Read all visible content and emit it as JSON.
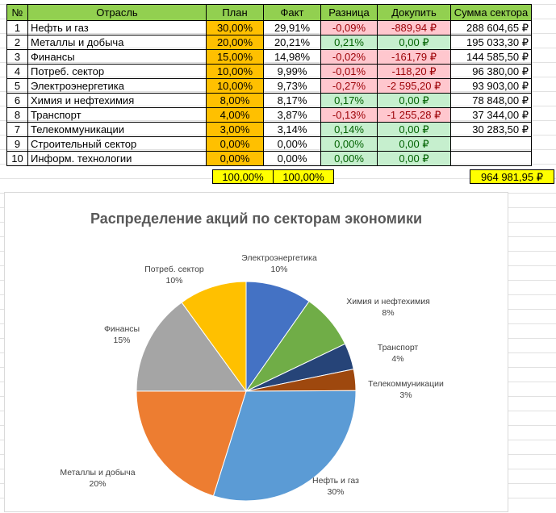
{
  "table": {
    "headers": [
      "№",
      "Отрасль",
      "План",
      "Факт",
      "Разница",
      "Докупить",
      "Сумма сектора"
    ],
    "rows": [
      {
        "n": "1",
        "name": "Нефть и газ",
        "plan": "30,00%",
        "fact": "29,91%",
        "diff": "-0,09%",
        "buy": "-889,94 ₽",
        "sum": "288 604,65 ₽",
        "neg": true
      },
      {
        "n": "2",
        "name": "Металлы и добыча",
        "plan": "20,00%",
        "fact": "20,21%",
        "diff": "0,21%",
        "buy": "0,00 ₽",
        "sum": "195 033,30 ₽",
        "neg": false
      },
      {
        "n": "3",
        "name": "Финансы",
        "plan": "15,00%",
        "fact": "14,98%",
        "diff": "-0,02%",
        "buy": "-161,79 ₽",
        "sum": "144 585,50 ₽",
        "neg": true
      },
      {
        "n": "4",
        "name": "Потреб. сектор",
        "plan": "10,00%",
        "fact": "9,99%",
        "diff": "-0,01%",
        "buy": "-118,20 ₽",
        "sum": "96 380,00 ₽",
        "neg": true
      },
      {
        "n": "5",
        "name": "Электроэнергетика",
        "plan": "10,00%",
        "fact": "9,73%",
        "diff": "-0,27%",
        "buy": "-2 595,20 ₽",
        "sum": "93 903,00 ₽",
        "neg": true
      },
      {
        "n": "6",
        "name": "Химия и нефтехимия",
        "plan": "8,00%",
        "fact": "8,17%",
        "diff": "0,17%",
        "buy": "0,00 ₽",
        "sum": "78 848,00 ₽",
        "neg": false
      },
      {
        "n": "8",
        "name": "Транспорт",
        "plan": "4,00%",
        "fact": "3,87%",
        "diff": "-0,13%",
        "buy": "-1 255,28 ₽",
        "sum": "37 344,00 ₽",
        "neg": true
      },
      {
        "n": "7",
        "name": "Телекоммуникации",
        "plan": "3,00%",
        "fact": "3,14%",
        "diff": "0,14%",
        "buy": "0,00 ₽",
        "sum": "30 283,50 ₽",
        "neg": false
      },
      {
        "n": "9",
        "name": "Строительный сектор",
        "plan": "0,00%",
        "fact": "0,00%",
        "diff": "0,00%",
        "buy": "0,00 ₽",
        "sum": "",
        "neg": false
      },
      {
        "n": "10",
        "name": "Информ. технологии",
        "plan": "0,00%",
        "fact": "0,00%",
        "diff": "0,00%",
        "buy": "0,00 ₽",
        "sum": "",
        "neg": false
      }
    ],
    "total_plan": "100,00%",
    "total_fact": "100,00%",
    "total_sum": "964 981,95 ₽"
  },
  "chart_data": {
    "type": "pie",
    "title": "Распределение акций по секторам экономики",
    "slices": [
      {
        "label": "Электроэнергетика",
        "value": 9.73,
        "pct": "10%",
        "color": "#4472c4"
      },
      {
        "label": "Химия и нефтехимия",
        "value": 8.17,
        "pct": "8%",
        "color": "#70ad47"
      },
      {
        "label": "Транспорт",
        "value": 3.87,
        "pct": "4%",
        "color": "#264478"
      },
      {
        "label": "Телекоммуникации",
        "value": 3.14,
        "pct": "3%",
        "color": "#9e480e"
      },
      {
        "label": "Нефть и газ",
        "value": 29.91,
        "pct": "30%",
        "color": "#5b9bd5"
      },
      {
        "label": "Металлы и добыча",
        "value": 20.21,
        "pct": "20%",
        "color": "#ed7d31"
      },
      {
        "label": "Финансы",
        "value": 14.98,
        "pct": "15%",
        "color": "#a5a5a5"
      },
      {
        "label": "Потреб. сектор",
        "value": 9.99,
        "pct": "10%",
        "color": "#ffc000"
      }
    ]
  }
}
